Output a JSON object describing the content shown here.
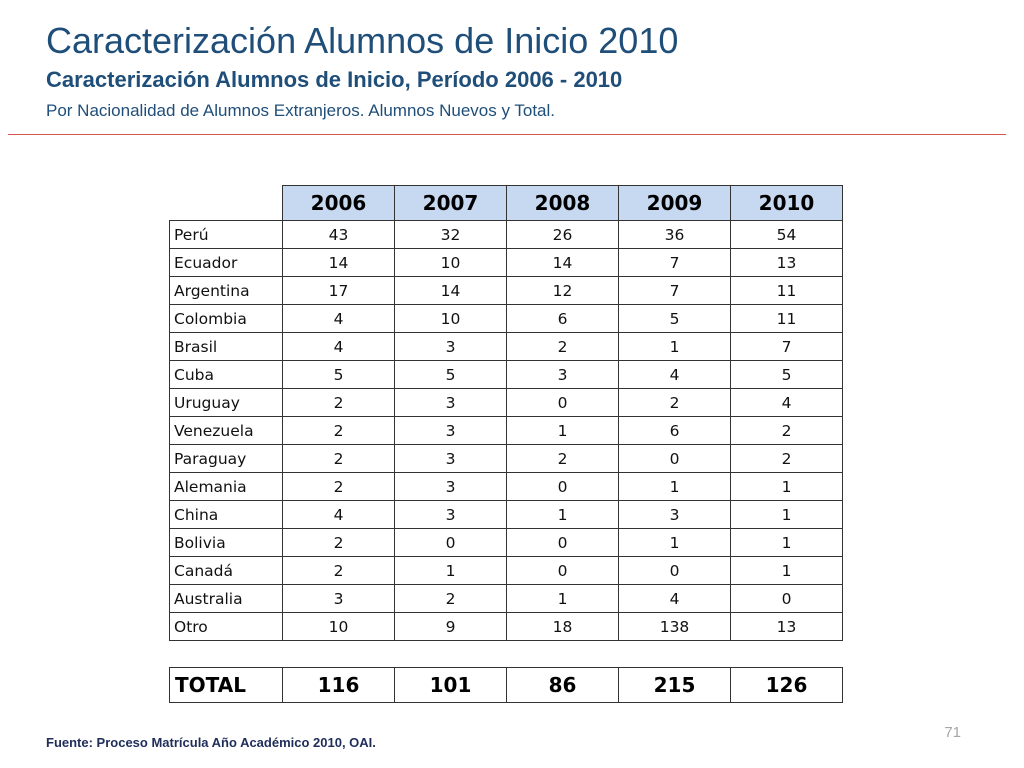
{
  "header": {
    "title": "Caracterización Alumnos de Inicio 2010",
    "subtitle": "Caracterización Alumnos de Inicio, Período 2006 - 2010",
    "description": "Por Nacionalidad de Alumnos Extranjeros. Alumnos Nuevos y Total."
  },
  "table": {
    "years": [
      "2006",
      "2007",
      "2008",
      "2009",
      "2010"
    ],
    "rows": [
      {
        "country": "Perú",
        "values": [
          43,
          32,
          26,
          36,
          54
        ]
      },
      {
        "country": "Ecuador",
        "values": [
          14,
          10,
          14,
          7,
          13
        ]
      },
      {
        "country": "Argentina",
        "values": [
          17,
          14,
          12,
          7,
          11
        ]
      },
      {
        "country": "Colombia",
        "values": [
          4,
          10,
          6,
          5,
          11
        ]
      },
      {
        "country": "Brasil",
        "values": [
          4,
          3,
          2,
          1,
          7
        ]
      },
      {
        "country": "Cuba",
        "values": [
          5,
          5,
          3,
          4,
          5
        ]
      },
      {
        "country": "Uruguay",
        "values": [
          2,
          3,
          0,
          2,
          4
        ]
      },
      {
        "country": "Venezuela",
        "values": [
          2,
          3,
          1,
          6,
          2
        ]
      },
      {
        "country": "Paraguay",
        "values": [
          2,
          3,
          2,
          0,
          2
        ]
      },
      {
        "country": "Alemania",
        "values": [
          2,
          3,
          0,
          1,
          1
        ]
      },
      {
        "country": "China",
        "values": [
          4,
          3,
          1,
          3,
          1
        ]
      },
      {
        "country": "Bolivia",
        "values": [
          2,
          0,
          0,
          1,
          1
        ]
      },
      {
        "country": "Canadá",
        "values": [
          2,
          1,
          0,
          0,
          1
        ]
      },
      {
        "country": "Australia",
        "values": [
          3,
          2,
          1,
          4,
          0
        ]
      },
      {
        "country": "Otro",
        "values": [
          10,
          9,
          18,
          138,
          13
        ]
      }
    ],
    "total": {
      "label": "TOTAL",
      "values": [
        116,
        101,
        86,
        215,
        126
      ]
    }
  },
  "footer": {
    "source": "Fuente: Proceso Matrícula Año Académico 2010, OAI.",
    "page_number": "71"
  },
  "colors": {
    "title": "#1f4e79",
    "header_fill": "#c6d9f1",
    "rule": "#d9534f"
  }
}
